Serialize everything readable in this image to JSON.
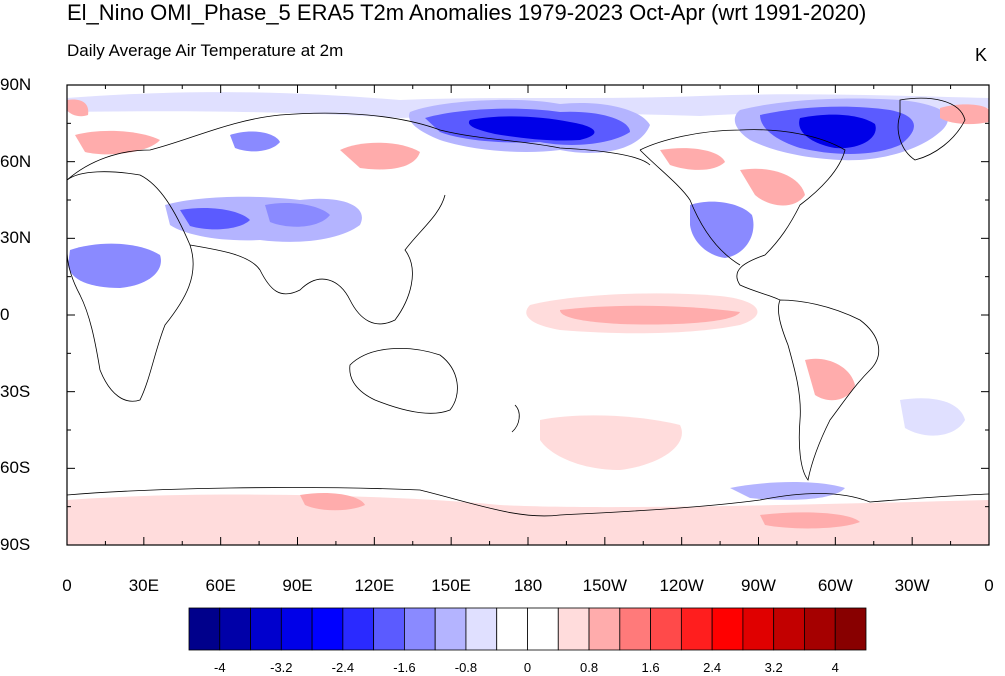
{
  "title": "El_Nino OMI_Phase_5 ERA5 T2m Anomalies 1979-2023 Oct-Apr (wrt 1991-2020)",
  "subtitle": "Daily Average Air Temperature at 2m",
  "units": "K",
  "lat_labels": [
    "90N",
    "60N",
    "30N",
    "0",
    "30S",
    "60S",
    "90S"
  ],
  "lon_labels": [
    "0",
    "30E",
    "60E",
    "90E",
    "120E",
    "150E",
    "180",
    "150W",
    "120W",
    "90W",
    "60W",
    "30W",
    "0"
  ],
  "colorbar": {
    "colors": [
      "#00008b",
      "#0000a8",
      "#0000cd",
      "#0000e8",
      "#0000ff",
      "#2a2aff",
      "#5b5bff",
      "#8a8aff",
      "#b4b4ff",
      "#e0e0ff",
      "#ffffff",
      "#ffffff",
      "#ffdcdc",
      "#ffacac",
      "#ff7a7a",
      "#ff4a4a",
      "#ff1e1e",
      "#ff0000",
      "#e00000",
      "#c20000",
      "#a50000",
      "#880000"
    ],
    "labels": [
      "-4",
      "-3.2",
      "-2.4",
      "-1.6",
      "-0.8",
      "0",
      "0.8",
      "1.6",
      "2.4",
      "3.2",
      "4"
    ]
  }
}
